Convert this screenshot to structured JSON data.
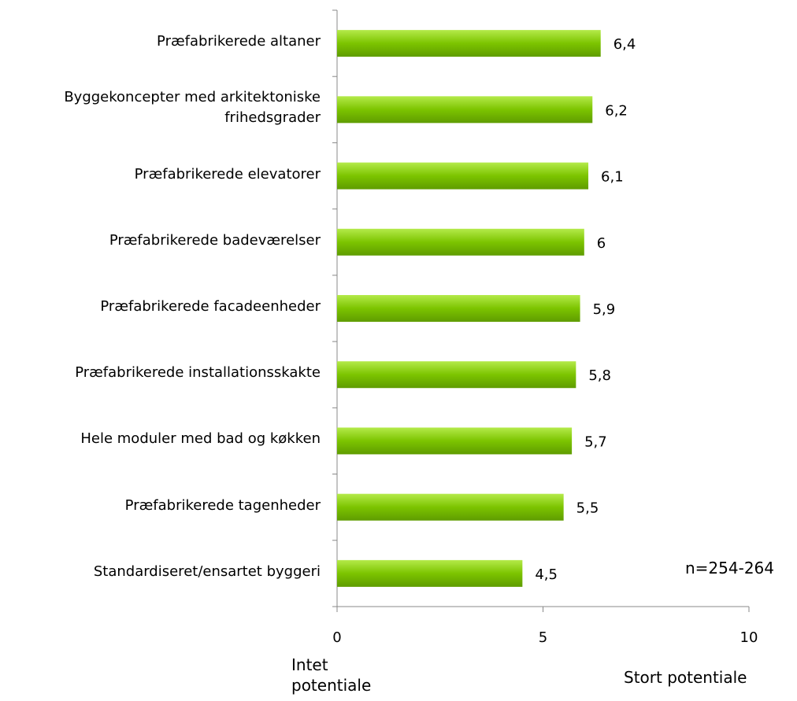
{
  "chart_data": {
    "type": "barh",
    "categories": [
      "Præfabrikerede altaner",
      "Byggekoncepter med arkitektoniske\nfrihedsgrader",
      "Præfabrikerede elevatorer",
      "Præfabrikerede badeværelser",
      "Præfabrikerede facadeenheder",
      "Præfabrikerede installationsskakte",
      "Hele moduler med bad og køkken",
      "Præfabrikerede tagenheder",
      "Standardiseret/ensartet byggeri"
    ],
    "values": [
      6.4,
      6.2,
      6.1,
      6,
      5.9,
      5.8,
      5.7,
      5.5,
      4.5
    ],
    "value_labels": [
      "6,4",
      "6,2",
      "6,1",
      "6",
      "5,9",
      "5,8",
      "5,7",
      "5,5",
      "4,5"
    ],
    "color": "#7cc400",
    "xlim": [
      0,
      10
    ],
    "xticks": [
      0,
      5,
      10
    ],
    "x_label_left": "Intet\npotentiale",
    "x_label_right": "Stort potentiale",
    "annotation": "n=254-264"
  }
}
